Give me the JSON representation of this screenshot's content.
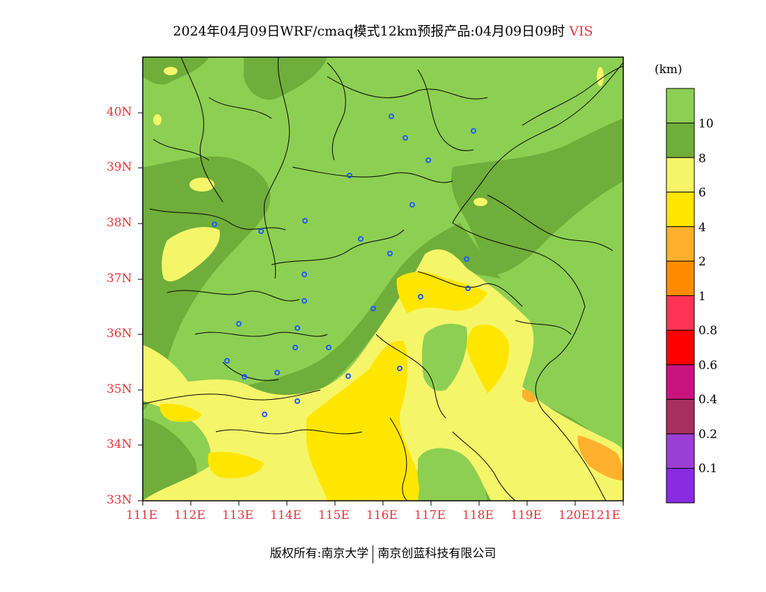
{
  "title": {
    "main": "2024年04月09日WRF/cmaq模式12km预报产品:04月09日09时",
    "variable": "VIS"
  },
  "colorbar": {
    "unit": "(km)",
    "levels": [
      {
        "color": "#8a2be2",
        "label": "0.1"
      },
      {
        "color": "#9b3fd4",
        "label": "0.2"
      },
      {
        "color": "#a8305e",
        "label": "0.4"
      },
      {
        "color": "#c8137f",
        "label": "0.6"
      },
      {
        "color": "#ff0000",
        "label": "0.8"
      },
      {
        "color": "#ff3355",
        "label": "1"
      },
      {
        "color": "#ff8c00",
        "label": "2"
      },
      {
        "color": "#ffb02e",
        "label": "4"
      },
      {
        "color": "#ffe600",
        "label": "6"
      },
      {
        "color": "#f5f56a",
        "label": "8"
      },
      {
        "color": "#6fae3a",
        "label": "10"
      },
      {
        "color": "#8dcf52",
        "label": ""
      }
    ]
  },
  "axes": {
    "y_ticks": [
      "40N",
      "39N",
      "38N",
      "37N",
      "36N",
      "35N",
      "34N",
      "33N"
    ],
    "x_ticks": [
      "111E",
      "112E",
      "113E",
      "114E",
      "115E",
      "116E",
      "117E",
      "118E",
      "119E",
      "120E",
      "121E"
    ]
  },
  "footer": {
    "left": "版权所有:南京大学",
    "right": "南京创蓝科技有限公司"
  },
  "colors": {
    "vis_gt10": "#8dcf52",
    "vis_8_10": "#6fae3a",
    "vis_6_8": "#f5f56a",
    "vis_4_6": "#ffe600",
    "vis_2_4": "#ffb02e",
    "vis_1_2": "#ff8c00",
    "axis_text": "#e8333c",
    "station_marker": "#1f5aff"
  }
}
